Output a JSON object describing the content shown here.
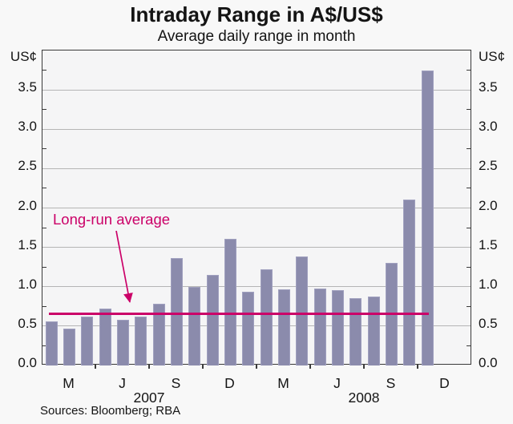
{
  "title": "Intraday Range in A$/US$",
  "subtitle": "Average daily range in month",
  "unit_left": "US¢",
  "unit_right": "US¢",
  "source_note": "Sources: Bloomberg; RBA",
  "annotation": {
    "label": "Long-run average"
  },
  "colors": {
    "bar": "#8b8bac",
    "bar_border": "#a0a0bf",
    "reference_line": "#cb0068",
    "grid": "#b5b5b5",
    "axis": "#3a3a3a",
    "plot_bg": "#f5f5f6",
    "page_bg": "#f8f8f8",
    "text": "#141414"
  },
  "chart_data": {
    "type": "bar",
    "title": "Intraday Range in A$/US$",
    "subtitle": "Average daily range in month",
    "ylabel": "US¢",
    "ylim": [
      0,
      4.0
    ],
    "yticks": [
      0.0,
      0.5,
      1.0,
      1.5,
      2.0,
      2.5,
      3.0,
      3.5
    ],
    "ytick_labels": [
      "0.0",
      "0.5",
      "1.0",
      "1.5",
      "2.0",
      "2.5",
      "3.0",
      "3.5"
    ],
    "grid": true,
    "legend_position": "none",
    "categories": [
      "Jan 2007",
      "Feb 2007",
      "Mar 2007",
      "Apr 2007",
      "May 2007",
      "Jun 2007",
      "Jul 2007",
      "Aug 2007",
      "Sep 2007",
      "Oct 2007",
      "Nov 2007",
      "Dec 2007",
      "Jan 2008",
      "Feb 2008",
      "Mar 2008",
      "Apr 2008",
      "May 2008",
      "Jun 2008",
      "Jul 2008",
      "Aug 2008",
      "Sep 2008",
      "Oct 2008"
    ],
    "values": [
      0.56,
      0.47,
      0.62,
      0.72,
      0.58,
      0.62,
      0.78,
      1.36,
      1.0,
      1.15,
      1.61,
      0.94,
      1.22,
      0.97,
      1.38,
      0.98,
      0.96,
      0.85,
      0.88,
      1.3,
      2.11,
      3.75
    ],
    "x_axis_months_per_slot": 24,
    "quarter_letter_labels": [
      "M",
      "J",
      "S",
      "D",
      "M",
      "J",
      "S",
      "D"
    ],
    "year_labels": [
      "2007",
      "2008"
    ],
    "reference_line": {
      "label": "Long-run average",
      "value": 0.66
    }
  }
}
